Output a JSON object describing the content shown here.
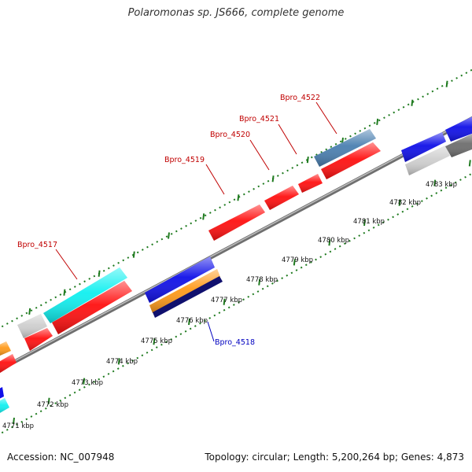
{
  "title": "Polaromonas sp. JS666, complete genome",
  "footer": {
    "accession": "Accession: NC_007948",
    "summary": "Topology: circular; Length: 5,200,264 bp; Genes: 4,873"
  },
  "colors": {
    "background": "#ffffff",
    "backbone": "#8c8c8c",
    "ticks": "#1e7a1e",
    "red": "#ff1010",
    "blue": "#1010e8",
    "cyan": "#10f0f0",
    "orange": "#ff9a1a",
    "navy": "#10106e",
    "steel": "#4a7fb0",
    "light_gray": "#cfcfcf",
    "dark_gray": "#6e6e6e",
    "red_label": "#c00000",
    "blue_label": "#0000c0"
  },
  "kbp_labels": [
    "4771 kbp",
    "4772 kbp",
    "4773 kbp",
    "4774 kbp",
    "4775 kbp",
    "4776 kbp",
    "4777 kbp",
    "4778 kbp",
    "4779 kbp",
    "4780 kbp",
    "4781 kbp",
    "4782 kbp",
    "4783 kbp"
  ],
  "gene_labels": [
    {
      "text": "Bpro_4517",
      "color": "red_label"
    },
    {
      "text": "Bpro_4518",
      "color": "blue_label"
    },
    {
      "text": "Bpro_4519",
      "color": "red_label"
    },
    {
      "text": "Bpro_4520",
      "color": "red_label"
    },
    {
      "text": "Bpro_4521",
      "color": "red_label"
    },
    {
      "text": "Bpro_4522",
      "color": "red_label"
    }
  ]
}
